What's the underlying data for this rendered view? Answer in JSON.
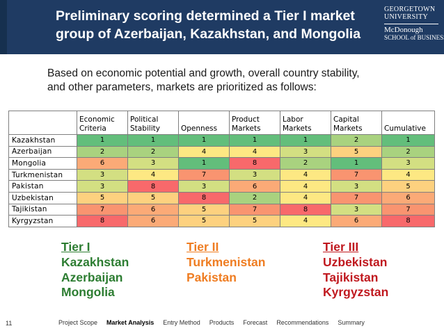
{
  "slide": {
    "title_line1": "Preliminary scoring determined a Tier I market",
    "title_line2": "group of Azerbaijan, Kazakhstan, and Mongolia",
    "logo": {
      "line1": "GEORGETOWN",
      "line2": "UNIVERSITY",
      "line3": "McDonough",
      "line4": "SCHOOL of BUSINESS"
    },
    "intro_line1": "Based on economic potential and growth, overall country stability,",
    "intro_line2": "and other parameters, markets are prioritized as follows:",
    "table": {
      "headers": [
        {
          "line1": "Economic",
          "line2": "Criteria"
        },
        {
          "line1": "Political",
          "line2": "Stability"
        },
        {
          "line1": "",
          "line2": "Openness"
        },
        {
          "line1": "Product",
          "line2": "Markets"
        },
        {
          "line1": "Labor",
          "line2": "Markets"
        },
        {
          "line1": "Capital",
          "line2": "Markets"
        },
        {
          "line1": "",
          "line2": "Cumulative"
        }
      ],
      "rows": [
        {
          "country": "Kazakhstan",
          "values": [
            "1",
            "1",
            "1",
            "1",
            "1",
            "2",
            "1"
          ]
        },
        {
          "country": "Azerbaijan",
          "values": [
            "2",
            "2",
            "4",
            "4",
            "3",
            "5",
            "2"
          ]
        },
        {
          "country": "Mongolia",
          "values": [
            "6",
            "3",
            "1",
            "8",
            "2",
            "1",
            "3"
          ]
        },
        {
          "country": "Turkmenistan",
          "values": [
            "3",
            "4",
            "7",
            "3",
            "4",
            "7",
            "4"
          ]
        },
        {
          "country": "Pakistan",
          "values": [
            "3",
            "8",
            "3",
            "6",
            "4",
            "3",
            "5"
          ]
        },
        {
          "country": "Uzbekistan",
          "values": [
            "5",
            "5",
            "8",
            "2",
            "4",
            "7",
            "6"
          ]
        },
        {
          "country": "Tajikistan",
          "values": [
            "7",
            "6",
            "5",
            "7",
            "8",
            "3",
            "7"
          ]
        },
        {
          "country": "Kyrgyzstan",
          "values": [
            "8",
            "6",
            "5",
            "5",
            "4",
            "6",
            "8"
          ]
        }
      ],
      "rank_colors": {
        "1": "#63be7b",
        "2": "#a9d27f",
        "3": "#d3df82",
        "4": "#fde883",
        "5": "#fdd17f",
        "6": "#fbaa77",
        "7": "#f99470",
        "8": "#f8696b"
      }
    },
    "tiers": {
      "tier1": {
        "title": "Tier I",
        "items": [
          "Kazakhstan",
          "Azerbaijan",
          "Mongolia"
        ],
        "color": "#2d7d32"
      },
      "tier2": {
        "title": "Tier II",
        "items": [
          "Turkmenistan",
          "Pakistan"
        ],
        "color": "#ef7d22"
      },
      "tier3": {
        "title": "Tier III",
        "items": [
          "Uzbekistan",
          "Tajikistan",
          "Kyrgyzstan"
        ],
        "color": "#c0191f"
      }
    },
    "footer": {
      "page_number": "11",
      "nav": [
        "Project Scope",
        "Market Analysis",
        "Entry Method",
        "Products",
        "Forecast",
        "Recommendations",
        "Summary"
      ],
      "active_nav": "Market Analysis"
    }
  }
}
